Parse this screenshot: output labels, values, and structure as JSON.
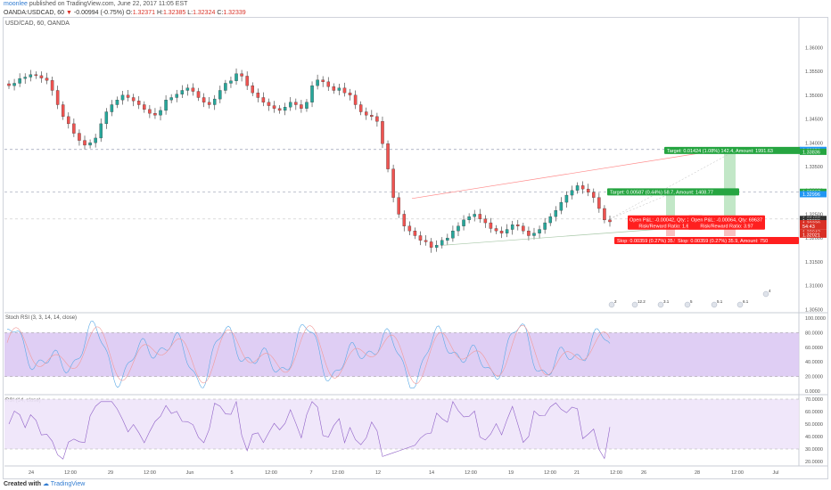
{
  "header": {
    "author": "moonlee",
    "published": "published on TradingView.com, June 22, 2017 11:05 EST",
    "symbol": "OANDA:USDCAD, 60",
    "change": "-0.00994 (-0.75%)",
    "open_label": "O:",
    "open": "1.32371",
    "high_label": "H:",
    "high": "1.32385",
    "low_label": "L:",
    "low": "1.32324",
    "close_label": "C:",
    "close": "1.32339"
  },
  "chart_title": "USD/CAD, 60, OANDA",
  "price_axis": {
    "ticks": [
      "1.36000",
      "1.35500",
      "1.35000",
      "1.34500",
      "1.34000",
      "1.33500",
      "1.33000",
      "1.32500",
      "1.32000",
      "1.31500",
      "1.31000",
      "1.30500"
    ],
    "tags": [
      {
        "text": "1.33858",
        "color": "#2196f3"
      },
      {
        "text": "1.33836",
        "color": "#26a541"
      },
      {
        "text": "1.32967",
        "color": "#26a541"
      },
      {
        "text": "1.32996",
        "color": "#2196f3"
      },
      {
        "text": "1.32402",
        "color": "#333333"
      },
      {
        "text": "1.32380",
        "color": "#333333"
      },
      {
        "text": "1.32339",
        "color": "#d93025"
      },
      {
        "text": "54:43",
        "color": "#d93025"
      },
      {
        "text": "1.32043",
        "color": "#d93025"
      },
      {
        "text": "1.32021",
        "color": "#d93025"
      }
    ]
  },
  "positions": [
    {
      "target": "Target: 0.00587 (0.44%) 58.7, Amount: 1408.77",
      "open": "Open P&L: -0.00042, Qty: 24000",
      "rr": "Risk/Reward Ratio: 1.64",
      "stop": "Stop: 0.00359 (0.27%) 35.9, Amount: 750"
    },
    {
      "target": "Target: 0.01424 (1.08%) 142.4, Amount: 1991.63",
      "open": "Open P&L: -0.00064, Qty: 69637",
      "rr": "Risk/Reward Ratio: 3.97",
      "stop": "Stop: 0.00359 (0.27%) 35.9, Amount: 750"
    }
  ],
  "event_badges": [
    "2",
    "12.2",
    "3.1",
    "5",
    "5.1",
    "6.1",
    "4"
  ],
  "stoch": {
    "label": "Stoch RSI (3, 3, 14, 14, close)",
    "ticks": [
      "100.0000",
      "80.0000",
      "60.0000",
      "40.0000",
      "20.0000",
      "0.0000"
    ]
  },
  "rsi": {
    "label": "RSI (14, close)",
    "ticks": [
      "70.0000",
      "60.0000",
      "50.0000",
      "40.0000",
      "30.0000",
      "20.0000"
    ]
  },
  "time_axis": [
    "24",
    "12:00",
    "29",
    "12:00",
    "Jun",
    "5",
    "12:00",
    "7",
    "12:00",
    "12",
    "14",
    "12:00",
    "19",
    "12:00",
    "21",
    "12:00",
    "26",
    "28",
    "12:00",
    "Jul"
  ],
  "footer": {
    "created_with": "Created with",
    "brand": "TradingView"
  },
  "colors": {
    "up": "#26a69a",
    "down": "#ef5350",
    "wick": "#333333",
    "stoch_band": "#d9c6f2",
    "rsi_band": "#eee4fa",
    "target": "#26a541",
    "stop": "#ff1f1f",
    "tag_blue": "#2196f3"
  },
  "chart_data": {
    "type": "candlestick",
    "symbol": "USDCAD",
    "interval": "60",
    "close_series": [
      1.352,
      1.3525,
      1.3535,
      1.3538,
      1.3543,
      1.3541,
      1.3536,
      1.3531,
      1.351,
      1.348,
      1.3455,
      1.344,
      1.342,
      1.3405,
      1.3395,
      1.34,
      1.341,
      1.344,
      1.3465,
      1.348,
      1.349,
      1.35,
      1.3495,
      1.3488,
      1.348,
      1.347,
      1.3462,
      1.3458,
      1.3468,
      1.349,
      1.3495,
      1.3502,
      1.351,
      1.3515,
      1.3508,
      1.3495,
      1.3485,
      1.348,
      1.3492,
      1.351,
      1.3525,
      1.353,
      1.3545,
      1.354,
      1.352,
      1.3505,
      1.3495,
      1.3485,
      1.3478,
      1.3472,
      1.3468,
      1.3475,
      1.3485,
      1.348,
      1.3472,
      1.3485,
      1.352,
      1.3532,
      1.3528,
      1.3518,
      1.351,
      1.3515,
      1.3505,
      1.35,
      1.348,
      1.3465,
      1.3458,
      1.3455,
      1.3445,
      1.3398,
      1.3345,
      1.3285,
      1.325,
      1.3225,
      1.3215,
      1.3205,
      1.3195,
      1.3192,
      1.318,
      1.3185,
      1.3195,
      1.32,
      1.3215,
      1.3225,
      1.3238,
      1.3245,
      1.325,
      1.324,
      1.3232,
      1.322,
      1.3215,
      1.321,
      1.3218,
      1.3228,
      1.3225,
      1.3215,
      1.3205,
      1.321,
      1.3218,
      1.3232,
      1.3245,
      1.3258,
      1.3275,
      1.329,
      1.33,
      1.331,
      1.3303,
      1.3296,
      1.3285,
      1.3262,
      1.3238,
      1.3234
    ],
    "trend_channel": {
      "upper_start": 1.3283,
      "upper_end": 1.3385,
      "lower_start": 1.3185,
      "lower_end": 1.3228
    }
  }
}
